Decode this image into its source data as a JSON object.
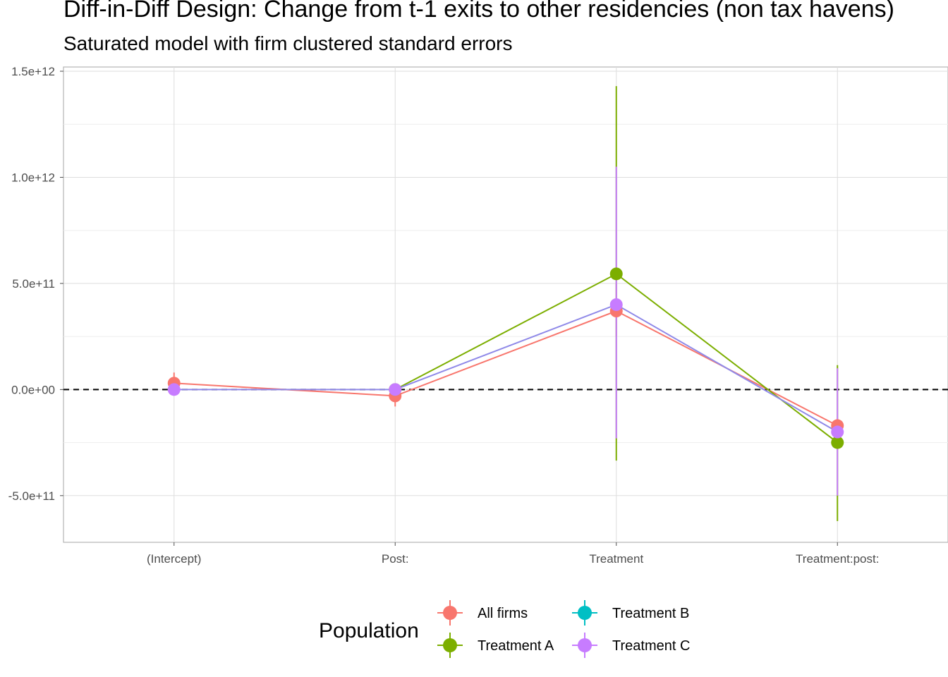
{
  "chart_data": {
    "type": "scatter",
    "title": "Diff-in-Diff Design: Change from t-1 exits to other residencies (non tax havens)",
    "subtitle": "Saturated model with firm clustered standard errors",
    "xlabel": "",
    "ylabel": "",
    "categories": [
      "(Intercept)",
      "Post:",
      "Treatment",
      "Treatment:post:"
    ],
    "ylim": [
      -720000000000.0,
      1520000000000.0
    ],
    "y_ticks": [
      -500000000000.0,
      0,
      500000000000.0,
      1000000000000.0,
      1500000000000.0
    ],
    "y_tick_labels": [
      "-5.0e+11",
      "0.0e+00",
      "5.0e+11",
      "1.0e+12",
      "1.5e+12"
    ],
    "reference_line": 0,
    "grid": true,
    "legend": {
      "title": "Population",
      "position": "bottom"
    },
    "series": [
      {
        "name": "All firms",
        "color": "#F8766D",
        "values": [
          30000000000.0,
          -30000000000.0,
          370000000000.0,
          -170000000000.0
        ],
        "lower": [
          -15000000000.0,
          -80000000000.0,
          250000000000.0,
          -200000000000.0
        ],
        "upper": [
          80000000000.0,
          20000000000.0,
          500000000000.0,
          -140000000000.0
        ],
        "line": true
      },
      {
        "name": "Treatment A",
        "color": "#7CAE00",
        "values": [
          null,
          0,
          545000000000.0,
          -250000000000.0
        ],
        "lower": [
          null,
          -10000000000.0,
          -335000000000.0,
          -620000000000.0
        ],
        "upper": [
          null,
          10000000000.0,
          1430000000000.0,
          115000000000.0
        ],
        "line": true
      },
      {
        "name": "Treatment B",
        "color": "#00BFC4",
        "values": [
          null,
          null,
          null,
          null
        ],
        "lower": [
          null,
          null,
          null,
          null
        ],
        "upper": [
          null,
          null,
          null,
          null
        ],
        "line": false
      },
      {
        "name": "Treatment C",
        "color": "#C77CFF",
        "values": [
          0,
          0,
          400000000000.0,
          -200000000000.0
        ],
        "lower": [
          -5000000000.0,
          -5000000000.0,
          -230000000000.0,
          -500000000000.0
        ],
        "upper": [
          5000000000.0,
          5000000000.0,
          1050000000000.0,
          100000000000.0
        ],
        "line": true,
        "line_color": "#8F89E8"
      }
    ]
  }
}
